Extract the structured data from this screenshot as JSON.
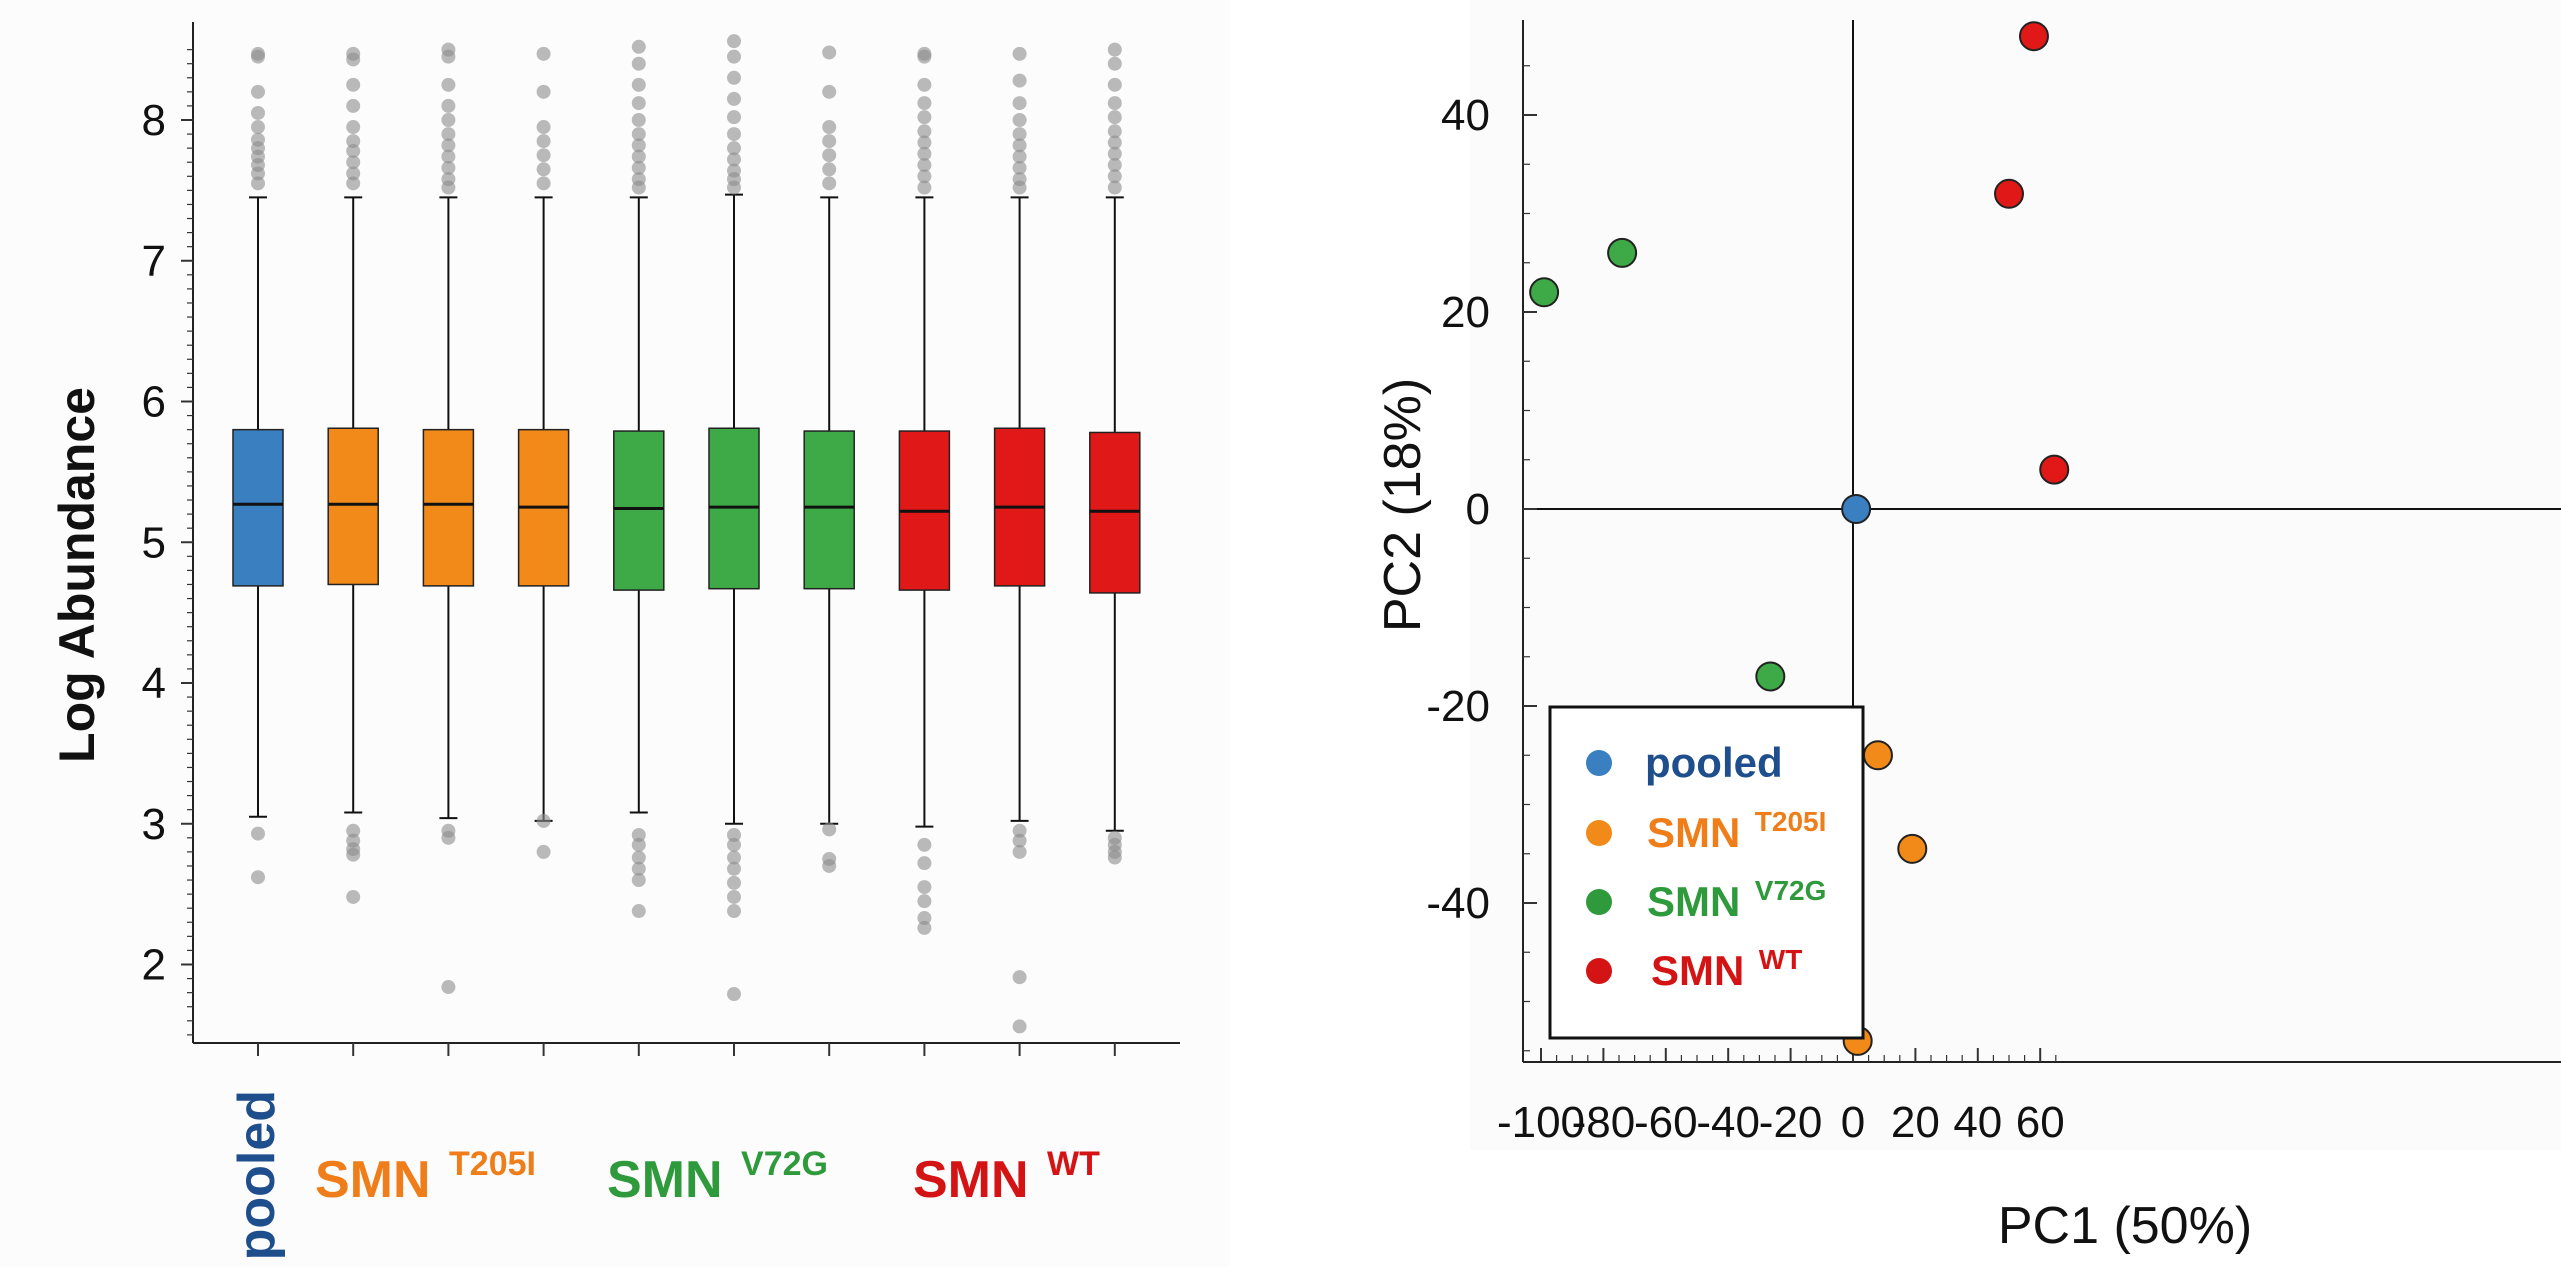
{
  "colors": {
    "pooled": "#3a7fbf",
    "t205i": "#f28a1a",
    "v72g": "#3daa47",
    "wt": "#e01818",
    "pooled_text": "#1f4e8c",
    "t205i_text": "#ef7d1a",
    "v72g_text": "#2f9a3c",
    "wt_text": "#d41414",
    "outlier": "#8c8c8c"
  },
  "chart_data": [
    {
      "type": "box",
      "ylabel": "Log Abundance",
      "ylim": [
        1.4,
        8.7
      ],
      "yticks": [
        2,
        3,
        4,
        5,
        6,
        7,
        8
      ],
      "grid": false,
      "group_labels": [
        {
          "key": "pooled",
          "text": "pooled",
          "sup": ""
        },
        {
          "key": "t205i",
          "text": "SMN",
          "sup": "T205I"
        },
        {
          "key": "v72g",
          "text": "SMN",
          "sup": "V72G"
        },
        {
          "key": "wt",
          "text": "SMN",
          "sup": "WT"
        }
      ],
      "boxes": [
        {
          "group": "pooled",
          "q1": 4.69,
          "median": 5.27,
          "q3": 5.8,
          "whisker_low": 3.05,
          "whisker_high": 7.45,
          "outliers_low": [
            2.93,
            2.62
          ],
          "outliers_high": [
            7.55,
            7.62,
            7.68,
            7.74,
            7.8,
            7.86,
            7.95,
            8.05,
            8.2,
            8.45,
            8.47
          ]
        },
        {
          "group": "t205i",
          "q1": 4.7,
          "median": 5.27,
          "q3": 5.81,
          "whisker_low": 3.08,
          "whisker_high": 7.45,
          "outliers_low": [
            2.95,
            2.88,
            2.82,
            2.78,
            2.48
          ],
          "outliers_high": [
            7.55,
            7.62,
            7.7,
            7.78,
            7.85,
            7.95,
            8.1,
            8.25,
            8.43,
            8.47
          ]
        },
        {
          "group": "t205i",
          "q1": 4.69,
          "median": 5.27,
          "q3": 5.8,
          "whisker_low": 3.04,
          "whisker_high": 7.45,
          "outliers_low": [
            2.95,
            2.9,
            1.84
          ],
          "outliers_high": [
            7.52,
            7.58,
            7.66,
            7.74,
            7.82,
            7.9,
            8.0,
            8.1,
            8.25,
            8.45,
            8.5
          ]
        },
        {
          "group": "t205i",
          "q1": 4.69,
          "median": 5.25,
          "q3": 5.8,
          "whisker_low": 3.02,
          "whisker_high": 7.45,
          "outliers_low": [
            3.02,
            2.8
          ],
          "outliers_high": [
            7.55,
            7.65,
            7.75,
            7.85,
            7.95,
            8.2,
            8.47
          ]
        },
        {
          "group": "v72g",
          "q1": 4.66,
          "median": 5.24,
          "q3": 5.79,
          "whisker_low": 3.08,
          "whisker_high": 7.45,
          "outliers_low": [
            2.92,
            2.85,
            2.76,
            2.68,
            2.6,
            2.38
          ],
          "outliers_high": [
            7.52,
            7.58,
            7.66,
            7.74,
            7.82,
            7.9,
            8.0,
            8.12,
            8.25,
            8.4,
            8.52
          ]
        },
        {
          "group": "v72g",
          "q1": 4.67,
          "median": 5.25,
          "q3": 5.81,
          "whisker_low": 3.0,
          "whisker_high": 7.47,
          "outliers_low": [
            2.92,
            2.85,
            2.76,
            2.68,
            2.58,
            2.48,
            2.38,
            1.79
          ],
          "outliers_high": [
            7.52,
            7.58,
            7.64,
            7.72,
            7.8,
            7.9,
            8.02,
            8.15,
            8.3,
            8.45,
            8.56
          ]
        },
        {
          "group": "v72g",
          "q1": 4.67,
          "median": 5.25,
          "q3": 5.79,
          "whisker_low": 3.0,
          "whisker_high": 7.45,
          "outliers_low": [
            2.96,
            2.75,
            2.7
          ],
          "outliers_high": [
            7.55,
            7.65,
            7.75,
            7.85,
            7.95,
            8.2,
            8.48
          ]
        },
        {
          "group": "wt",
          "q1": 4.66,
          "median": 5.22,
          "q3": 5.79,
          "whisker_low": 2.98,
          "whisker_high": 7.45,
          "outliers_low": [
            2.85,
            2.72,
            2.55,
            2.45,
            2.33,
            2.26
          ],
          "outliers_high": [
            7.52,
            7.6,
            7.68,
            7.76,
            7.84,
            7.92,
            8.02,
            8.12,
            8.25,
            8.45,
            8.47
          ]
        },
        {
          "group": "wt",
          "q1": 4.69,
          "median": 5.25,
          "q3": 5.81,
          "whisker_low": 3.02,
          "whisker_high": 7.45,
          "outliers_low": [
            2.95,
            2.88,
            2.8,
            1.91,
            1.56
          ],
          "outliers_high": [
            7.52,
            7.58,
            7.66,
            7.74,
            7.82,
            7.9,
            8.0,
            8.12,
            8.28,
            8.47
          ]
        },
        {
          "group": "wt",
          "q1": 4.64,
          "median": 5.22,
          "q3": 5.78,
          "whisker_low": 2.95,
          "whisker_high": 7.45,
          "outliers_low": [
            2.9,
            2.85,
            2.8,
            2.76
          ],
          "outliers_high": [
            7.52,
            7.6,
            7.68,
            7.76,
            7.84,
            7.92,
            8.02,
            8.12,
            8.25,
            8.4,
            8.5
          ]
        }
      ]
    },
    {
      "type": "scatter",
      "xlabel": "PC1 (50%)",
      "ylabel": "PC2 (18%)",
      "xlim": [
        -102,
        65
      ],
      "ylim": [
        -57,
        50
      ],
      "xticks": [
        -100,
        -80,
        -60,
        -40,
        -20,
        0,
        20,
        40,
        60
      ],
      "yticks": [
        -40,
        -20,
        0,
        20,
        40
      ],
      "grid": false,
      "legend_position": "bottom-left",
      "legend": [
        {
          "group": "pooled",
          "text": "pooled",
          "sup": ""
        },
        {
          "group": "t205i",
          "text": "SMN",
          "sup": "T205I"
        },
        {
          "group": "v72g",
          "text": "SMN",
          "sup": "V72G"
        },
        {
          "group": "wt",
          "text": "SMN",
          "sup": "WT"
        }
      ],
      "points": [
        {
          "group": "pooled",
          "x": 1,
          "y": 0
        },
        {
          "group": "t205i",
          "x": 8,
          "y": -25
        },
        {
          "group": "t205i",
          "x": 19,
          "y": -34.5
        },
        {
          "group": "t205i",
          "x": 1.5,
          "y": -54
        },
        {
          "group": "v72g",
          "x": -99,
          "y": 22
        },
        {
          "group": "v72g",
          "x": -74,
          "y": 26
        },
        {
          "group": "v72g",
          "x": -26.5,
          "y": -17
        },
        {
          "group": "wt",
          "x": 50,
          "y": 32
        },
        {
          "group": "wt",
          "x": 58,
          "y": 48
        },
        {
          "group": "wt",
          "x": 64.5,
          "y": 4
        }
      ]
    }
  ]
}
